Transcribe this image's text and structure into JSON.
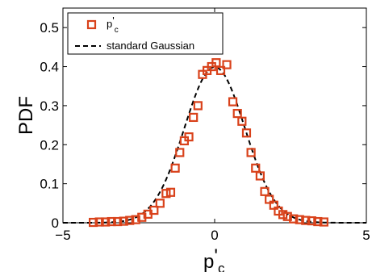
{
  "chart_data": {
    "type": "scatter",
    "xlabel": {
      "base": "p",
      "prime": "'",
      "sub": "c"
    },
    "ylabel": "PDF",
    "xlim": [
      -5,
      5
    ],
    "ylim": [
      0,
      0.55
    ],
    "xticks": [
      "−5",
      "0",
      "5"
    ],
    "yticks": [
      "0",
      "0.1",
      "0.2",
      "0.3",
      "0.4",
      "0.5"
    ],
    "grid": false,
    "legend_position": "top-left",
    "series": [
      {
        "name": {
          "base": "p",
          "prime": "'",
          "sub": "c"
        },
        "kind": "markers",
        "marker": "square",
        "color": "#d9421b",
        "points": [
          [
            -4.0,
            0.001
          ],
          [
            -3.8,
            0.002
          ],
          [
            -3.6,
            0.002
          ],
          [
            -3.4,
            0.003
          ],
          [
            -3.2,
            0.003
          ],
          [
            -3.0,
            0.004
          ],
          [
            -2.8,
            0.006
          ],
          [
            -2.6,
            0.008
          ],
          [
            -2.4,
            0.014
          ],
          [
            -2.2,
            0.022
          ],
          [
            -2.0,
            0.032
          ],
          [
            -1.8,
            0.05
          ],
          [
            -1.6,
            0.075
          ],
          [
            -1.45,
            0.078
          ],
          [
            -1.3,
            0.14
          ],
          [
            -1.15,
            0.18
          ],
          [
            -1.0,
            0.21
          ],
          [
            -0.85,
            0.22
          ],
          [
            -0.7,
            0.27
          ],
          [
            -0.55,
            0.3
          ],
          [
            -0.4,
            0.38
          ],
          [
            -0.25,
            0.39
          ],
          [
            -0.1,
            0.4
          ],
          [
            0.05,
            0.41
          ],
          [
            0.2,
            0.39
          ],
          [
            0.4,
            0.405
          ],
          [
            0.6,
            0.31
          ],
          [
            0.75,
            0.28
          ],
          [
            0.9,
            0.26
          ],
          [
            1.05,
            0.23
          ],
          [
            1.2,
            0.18
          ],
          [
            1.35,
            0.14
          ],
          [
            1.5,
            0.12
          ],
          [
            1.65,
            0.08
          ],
          [
            1.8,
            0.06
          ],
          [
            1.95,
            0.045
          ],
          [
            2.1,
            0.03
          ],
          [
            2.25,
            0.021
          ],
          [
            2.4,
            0.016
          ],
          [
            2.6,
            0.01
          ],
          [
            2.8,
            0.008
          ],
          [
            3.0,
            0.006
          ],
          [
            3.2,
            0.005
          ],
          [
            3.4,
            0.003
          ],
          [
            3.6,
            0.002
          ]
        ]
      },
      {
        "name": "standard Gaussian",
        "kind": "line",
        "dash": "dashed",
        "color": "#000000",
        "function": "standard_normal_pdf"
      }
    ]
  }
}
